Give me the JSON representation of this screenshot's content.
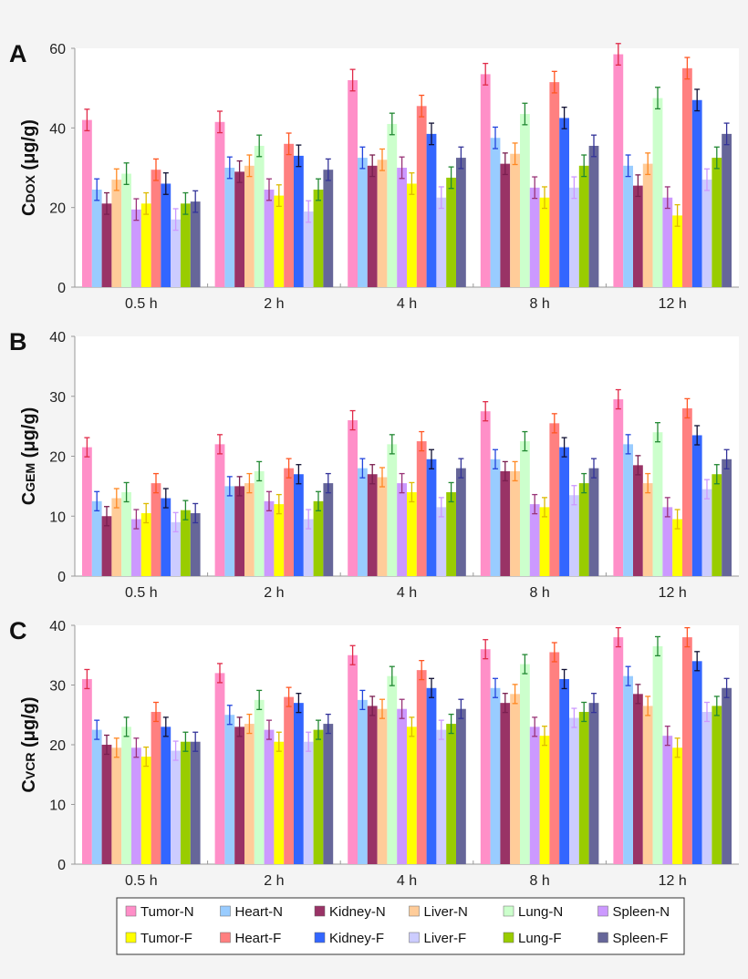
{
  "chart_data": [
    {
      "type": "bar",
      "panel_label": "A",
      "ylabel": {
        "main": "C",
        "sub": "DOX",
        "unit": "(μg/g)"
      },
      "ylim": [
        0,
        60
      ],
      "yticks": [
        "0",
        "20",
        "40",
        "60"
      ],
      "ytick_values": [
        0,
        20,
        40,
        60
      ],
      "categories": [
        "0.5 h",
        "2 h",
        "4 h",
        "8 h",
        "12 h"
      ],
      "grid": false,
      "error_bars": true,
      "values": [
        [
          42,
          24.5,
          21,
          27,
          28.5,
          19.5,
          21,
          29.5,
          26,
          17,
          21,
          21.5
        ],
        [
          41.5,
          30,
          29,
          30.5,
          35.5,
          24.5,
          23,
          36,
          33,
          19,
          24.5,
          29.5
        ],
        [
          52,
          32.5,
          30.5,
          32,
          41,
          30,
          26,
          45.5,
          38.5,
          22.5,
          27.5,
          32.5
        ],
        [
          53.5,
          37.5,
          31,
          33.5,
          43.5,
          25,
          22.5,
          51.5,
          42.5,
          25,
          30.5,
          35.5
        ],
        [
          58.5,
          30.5,
          25.5,
          31,
          47.5,
          22.5,
          18,
          55,
          47,
          27,
          32.5,
          38.5
        ]
      ],
      "error": 2.7
    },
    {
      "type": "bar",
      "panel_label": "B",
      "ylabel": {
        "main": "C",
        "sub": "GEM",
        "unit": "(μg/g)"
      },
      "ylim": [
        0,
        40
      ],
      "yticks": [
        "0",
        "10",
        "20",
        "30",
        "40"
      ],
      "ytick_values": [
        0,
        10,
        20,
        30,
        40
      ],
      "categories": [
        "0.5 h",
        "2 h",
        "4 h",
        "8 h",
        "12 h"
      ],
      "grid": false,
      "error_bars": true,
      "values": [
        [
          21.5,
          12.5,
          10,
          13,
          14,
          9.5,
          10.5,
          15.5,
          13,
          9,
          11,
          10.5
        ],
        [
          22,
          15,
          15,
          15.5,
          17.5,
          12.5,
          12,
          18,
          17,
          9.5,
          12.5,
          15.5
        ],
        [
          26,
          18,
          17,
          16.5,
          22,
          15.5,
          14,
          22.5,
          19.5,
          11.5,
          14,
          18
        ],
        [
          27.5,
          19.5,
          17.5,
          17.5,
          22.5,
          12,
          11.5,
          25.5,
          21.5,
          13.5,
          15.5,
          18
        ],
        [
          29.5,
          22,
          18.5,
          15.5,
          24,
          11.5,
          9.5,
          28,
          23.5,
          14.5,
          17,
          19.5
        ]
      ],
      "error": 1.6
    },
    {
      "type": "bar",
      "panel_label": "C",
      "ylabel": {
        "main": "C",
        "sub": "VCR",
        "unit": "(μg/g)"
      },
      "ylim": [
        0,
        40
      ],
      "yticks": [
        "0",
        "10",
        "20",
        "30",
        "40"
      ],
      "ytick_values": [
        0,
        10,
        20,
        30,
        40
      ],
      "categories": [
        "0.5 h",
        "2 h",
        "4 h",
        "8 h",
        "12 h"
      ],
      "grid": false,
      "error_bars": true,
      "values": [
        [
          31,
          22.5,
          20,
          19.5,
          23,
          19.5,
          18,
          25.5,
          23,
          19,
          20.5,
          20.5
        ],
        [
          32,
          25,
          23,
          23.5,
          27.5,
          22.5,
          20.5,
          28,
          27,
          20.5,
          22.5,
          23.5
        ],
        [
          35,
          27.5,
          26.5,
          26,
          31.5,
          26,
          23,
          32.5,
          29.5,
          22.5,
          23.5,
          26
        ],
        [
          36,
          29.5,
          27,
          28.5,
          33.5,
          23,
          21.5,
          35.5,
          31,
          24.5,
          25.5,
          27
        ],
        [
          38,
          31.5,
          28.5,
          26.5,
          36.5,
          21.5,
          19.5,
          38,
          34,
          25.5,
          26.5,
          29.5
        ]
      ],
      "error": 1.6
    }
  ],
  "series": [
    {
      "name": "Tumor-N",
      "color": "#ff8fc8",
      "error_color": "#e02a48"
    },
    {
      "name": "Heart-N",
      "color": "#99ccff",
      "error_color": "#2244dd"
    },
    {
      "name": "Kidney-N",
      "color": "#993366",
      "error_color": "#7a1f50"
    },
    {
      "name": "Liver-N",
      "color": "#ffcc99",
      "error_color": "#ff8822"
    },
    {
      "name": "Lung-N",
      "color": "#ccffcc",
      "error_color": "#228833"
    },
    {
      "name": "Spleen-N",
      "color": "#cc99ff",
      "error_color": "#993377"
    },
    {
      "name": "Tumor-F",
      "color": "#ffff00",
      "error_color": "#ddbb00"
    },
    {
      "name": "Heart-F",
      "color": "#ff8080",
      "error_color": "#ff5522"
    },
    {
      "name": "Kidney-F",
      "color": "#3366ff",
      "error_color": "#111133"
    },
    {
      "name": "Liver-F",
      "color": "#ccccff",
      "error_color": "#cc99ff"
    },
    {
      "name": "Lung-F",
      "color": "#99cc00",
      "error_color": "#228833"
    },
    {
      "name": "Spleen-F",
      "color": "#666699",
      "error_color": "#333399"
    }
  ],
  "legend": {
    "placement": "bottom",
    "columns": 6
  }
}
